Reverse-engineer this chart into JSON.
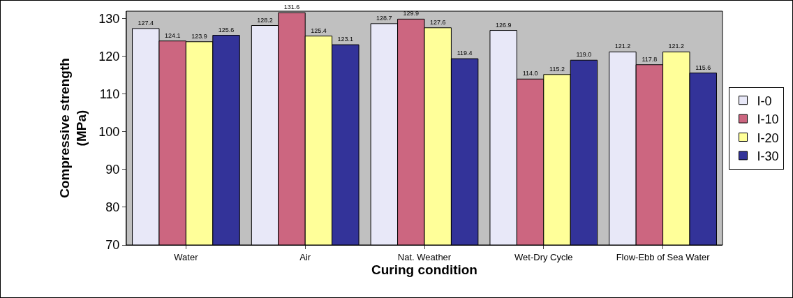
{
  "chart_data": {
    "type": "bar",
    "xlabel": "Curing condition",
    "ylabel": "Compressive strength (MPa)",
    "categories": [
      "Water",
      "Air",
      "Nat. Weather",
      "Wet-Dry Cycle",
      "Flow-Ebb of Sea Water"
    ],
    "series": [
      {
        "name": "I-0",
        "color": "#e8e8f8",
        "values": [
          127.4,
          128.2,
          128.7,
          126.9,
          121.2
        ],
        "value_labels": [
          "127.4",
          "128.2",
          "128.7",
          "126.9",
          "121.2"
        ]
      },
      {
        "name": "I-10",
        "color": "#cc6680",
        "values": [
          124.1,
          131.6,
          129.9,
          114.0,
          117.8
        ],
        "value_labels": [
          "124.1",
          "131.6",
          "129.9",
          "114.0",
          "117.8"
        ]
      },
      {
        "name": "I-20",
        "color": "#ffff99",
        "values": [
          123.9,
          125.4,
          127.6,
          115.2,
          121.2
        ],
        "value_labels": [
          "123.9",
          "125.4",
          "127.6",
          "115.2",
          "121.2"
        ]
      },
      {
        "name": "I-30",
        "color": "#333399",
        "values": [
          125.6,
          123.1,
          119.4,
          119.0,
          115.6
        ],
        "value_labels": [
          "125.6",
          "123.1",
          "119.4",
          "119.0",
          "115.6"
        ]
      }
    ],
    "ylim": [
      70,
      132
    ],
    "yticks": [
      70,
      80,
      90,
      100,
      110,
      120,
      130
    ],
    "grid": false,
    "legend": "right"
  }
}
